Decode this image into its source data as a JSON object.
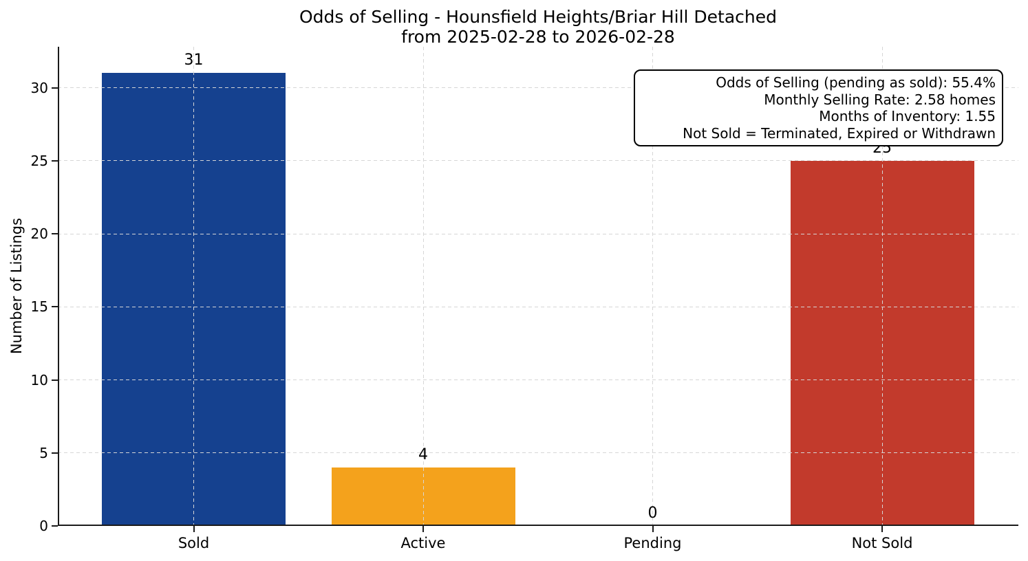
{
  "chart_data": {
    "type": "bar",
    "title": "Odds of Selling - Hounsfield Heights/Briar Hill Detached",
    "subtitle": "from 2025-02-28 to 2026-02-28",
    "categories": [
      "Sold",
      "Active",
      "Pending",
      "Not Sold"
    ],
    "values": [
      31,
      4,
      0,
      25
    ],
    "bar_colors": [
      "#15418f",
      "#f4a21c",
      null,
      "#c23a2c"
    ],
    "xlabel": "",
    "ylabel": "Number of Listings",
    "ylim": [
      0,
      32.8
    ],
    "yticks": [
      0,
      5,
      10,
      15,
      20,
      25,
      30
    ],
    "grid": {
      "visible": true,
      "style": "dashed",
      "axis": "both",
      "color": "#d6d6d6",
      "above_bars": true
    },
    "legend": "none",
    "axis_color": "#1a1a1a",
    "annotation_lines": [
      "Odds of Selling (pending as sold): 55.4%",
      "Monthly Selling Rate: 2.58 homes",
      "Months of Inventory: 1.55",
      "Not Sold = Terminated, Expired or Withdrawn"
    ]
  }
}
